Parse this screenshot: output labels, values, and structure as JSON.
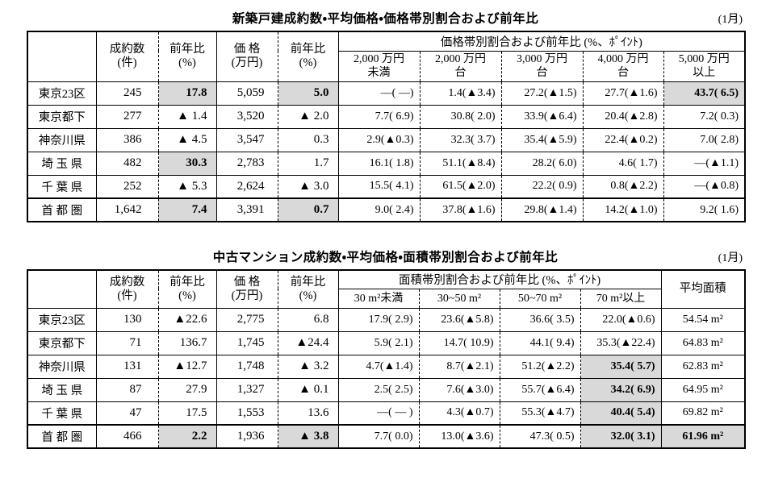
{
  "colors": {
    "shaded_cell": "#d9d9d9",
    "border": "#000000",
    "text": "#000000",
    "background": "#ffffff"
  },
  "tables": [
    {
      "title": "新築戸建成約数・平均価格・価格帯別割合および前年比",
      "month_label": "(1月)",
      "columns": [
        {
          "l1": "成約数",
          "l2": "(件)"
        },
        {
          "l1": "前年比",
          "l2": "(%)"
        },
        {
          "l1": "価 格",
          "l2": "(万円)"
        },
        {
          "l1": "前年比",
          "l2": "(%)"
        }
      ],
      "group_header": "価格帯別割合および前年比 (%、ﾎﾟｲﾝﾄ)",
      "bands": [
        {
          "l1": "2,000 万円",
          "l2": "未満"
        },
        {
          "l1": "2,000 万円",
          "l2": "台"
        },
        {
          "l1": "3,000 万円",
          "l2": "台"
        },
        {
          "l1": "4,000 万円",
          "l2": "台"
        },
        {
          "l1": "5,000 万円",
          "l2": "以上"
        }
      ],
      "rows": [
        {
          "region": "東京23区",
          "total": false,
          "cells": [
            {
              "t": "245"
            },
            {
              "t": "17.8",
              "s": true
            },
            {
              "t": "5,059"
            },
            {
              "t": "5.0",
              "s": true
            },
            {
              "t": "—( —)"
            },
            {
              "t": "1.4(▲3.4)"
            },
            {
              "t": "27.2(▲1.5)"
            },
            {
              "t": "27.7(▲1.6)"
            },
            {
              "t": "43.7( 6.5)",
              "s": true
            }
          ]
        },
        {
          "region": "東京都下",
          "total": false,
          "cells": [
            {
              "t": "277"
            },
            {
              "t": "▲ 1.4"
            },
            {
              "t": "3,520"
            },
            {
              "t": "▲ 2.0"
            },
            {
              "t": "7.7( 6.9)"
            },
            {
              "t": "30.8( 2.0)"
            },
            {
              "t": "33.9(▲6.4)"
            },
            {
              "t": "20.4(▲2.8)"
            },
            {
              "t": "7.2( 0.3)"
            }
          ]
        },
        {
          "region": "神奈川県",
          "total": false,
          "cells": [
            {
              "t": "386"
            },
            {
              "t": "▲ 4.5"
            },
            {
              "t": "3,547"
            },
            {
              "t": "0.3"
            },
            {
              "t": "2.9(▲0.3)"
            },
            {
              "t": "32.3( 3.7)"
            },
            {
              "t": "35.4(▲5.9)"
            },
            {
              "t": "22.4(▲0.2)"
            },
            {
              "t": "7.0( 2.8)"
            }
          ]
        },
        {
          "region": "埼 玉 県",
          "total": false,
          "cells": [
            {
              "t": "482"
            },
            {
              "t": "30.3",
              "s": true
            },
            {
              "t": "2,783"
            },
            {
              "t": "1.7"
            },
            {
              "t": "16.1( 1.8)"
            },
            {
              "t": "51.1(▲8.4)"
            },
            {
              "t": "28.2( 6.0)"
            },
            {
              "t": "4.6( 1.7)"
            },
            {
              "t": "—(▲1.1)"
            }
          ]
        },
        {
          "region": "千 葉 県",
          "total": false,
          "cells": [
            {
              "t": "252"
            },
            {
              "t": "▲ 5.3"
            },
            {
              "t": "2,624"
            },
            {
              "t": "▲ 3.0"
            },
            {
              "t": "15.5( 4.1)"
            },
            {
              "t": "61.5(▲2.0)"
            },
            {
              "t": "22.2( 0.9)"
            },
            {
              "t": "0.8(▲2.2)"
            },
            {
              "t": "—(▲0.8)"
            }
          ]
        },
        {
          "region": "首 都 圏",
          "total": true,
          "cells": [
            {
              "t": "1,642"
            },
            {
              "t": "7.4",
              "s": true
            },
            {
              "t": "3,391"
            },
            {
              "t": "0.7",
              "s": true
            },
            {
              "t": "9.0( 2.4)"
            },
            {
              "t": "37.8(▲1.6)"
            },
            {
              "t": "29.8(▲1.4)"
            },
            {
              "t": "14.2(▲1.0)"
            },
            {
              "t": "9.2( 1.6)"
            }
          ]
        }
      ]
    },
    {
      "title": "中古マンション成約数・平均価格・面積帯別割合および前年比",
      "month_label": "(1月)",
      "columns": [
        {
          "l1": "成約数",
          "l2": "(件)"
        },
        {
          "l1": "前年比",
          "l2": "(%)"
        },
        {
          "l1": "価 格",
          "l2": "(万円)"
        },
        {
          "l1": "前年比",
          "l2": "(%)"
        }
      ],
      "group_header": "面積帯別割合および前年比 (%、ﾎﾟｲﾝﾄ)",
      "bands": [
        {
          "l1": "30 m²未満"
        },
        {
          "l1": "30~50 m²"
        },
        {
          "l1": "50~70 m²"
        },
        {
          "l1": "70 m²以上"
        }
      ],
      "avg_area_header": "平均面積",
      "rows": [
        {
          "region": "東京23区",
          "total": false,
          "cells": [
            {
              "t": "130"
            },
            {
              "t": "▲22.6"
            },
            {
              "t": "2,775"
            },
            {
              "t": "6.8"
            },
            {
              "t": "17.9( 2.9)"
            },
            {
              "t": "23.6(▲5.8)"
            },
            {
              "t": "36.6( 3.5)"
            },
            {
              "t": "22.0(▲0.6)"
            },
            {
              "t": "54.54 m²"
            }
          ]
        },
        {
          "region": "東京都下",
          "total": false,
          "cells": [
            {
              "t": "71"
            },
            {
              "t": "136.7"
            },
            {
              "t": "1,745"
            },
            {
              "t": "▲24.4"
            },
            {
              "t": "5.9( 2.1)"
            },
            {
              "t": "14.7( 10.9)"
            },
            {
              "t": "44.1( 9.4)"
            },
            {
              "t": "35.3(▲22.4)"
            },
            {
              "t": "64.83 m²"
            }
          ]
        },
        {
          "region": "神奈川県",
          "total": false,
          "cells": [
            {
              "t": "131"
            },
            {
              "t": "▲12.7"
            },
            {
              "t": "1,748"
            },
            {
              "t": "▲ 3.2"
            },
            {
              "t": "4.7(▲1.4)"
            },
            {
              "t": "8.7(▲2.1)"
            },
            {
              "t": "51.2(▲2.2)"
            },
            {
              "t": "35.4( 5.7)",
              "s": true
            },
            {
              "t": "62.83 m²"
            }
          ]
        },
        {
          "region": "埼 玉 県",
          "total": false,
          "cells": [
            {
              "t": "87"
            },
            {
              "t": "27.9"
            },
            {
              "t": "1,327"
            },
            {
              "t": "▲ 0.1"
            },
            {
              "t": "2.5( 2.5)"
            },
            {
              "t": "7.6(▲3.0)"
            },
            {
              "t": "55.7(▲6.4)"
            },
            {
              "t": "34.2( 6.9)",
              "s": true
            },
            {
              "t": "64.95 m²"
            }
          ]
        },
        {
          "region": "千 葉 県",
          "total": false,
          "cells": [
            {
              "t": "47"
            },
            {
              "t": "17.5"
            },
            {
              "t": "1,553"
            },
            {
              "t": "13.6"
            },
            {
              "t": "—( — )"
            },
            {
              "t": "4.3(▲0.7)"
            },
            {
              "t": "55.3(▲4.7)"
            },
            {
              "t": "40.4( 5.4)",
              "s": true
            },
            {
              "t": "69.82 m²"
            }
          ]
        },
        {
          "region": "首 都 圏",
          "total": true,
          "cells": [
            {
              "t": "466"
            },
            {
              "t": "2.2",
              "s": true
            },
            {
              "t": "1,936"
            },
            {
              "t": "▲ 3.8",
              "s": true
            },
            {
              "t": "7.7( 0.0)"
            },
            {
              "t": "13.0(▲3.6)"
            },
            {
              "t": "47.3( 0.5)"
            },
            {
              "t": "32.0( 3.1)",
              "s": true
            },
            {
              "t": "61.96 m²",
              "s": true
            }
          ]
        }
      ]
    }
  ]
}
